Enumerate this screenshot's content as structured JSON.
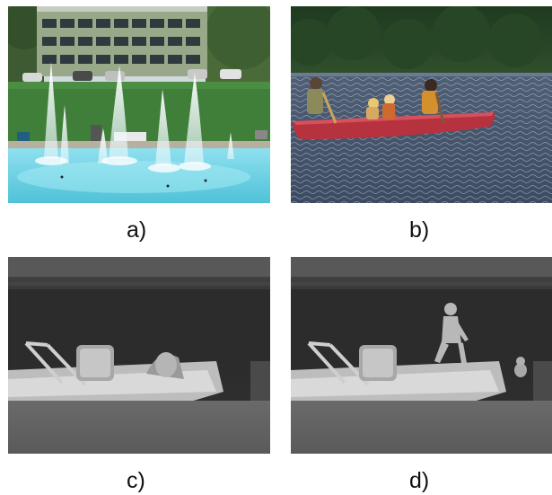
{
  "panels": [
    {
      "id": "a",
      "caption": "a)",
      "scene": "fountain-scene"
    },
    {
      "id": "b",
      "caption": "b)",
      "scene": "canoe-scene"
    },
    {
      "id": "c",
      "caption": "c)",
      "scene": "thermal-boat-scene"
    },
    {
      "id": "d",
      "caption": "d)",
      "scene": "thermal-boat-person-scene"
    }
  ],
  "colors": {
    "pool": "#6fd2e2",
    "grass": "#3f7f3a",
    "building": "#8a9a7a",
    "lake": "#4a5a70",
    "canoe": "#b5323e",
    "thermal_dark": "#2a2a2a",
    "thermal_light": "#cfcfcf"
  }
}
